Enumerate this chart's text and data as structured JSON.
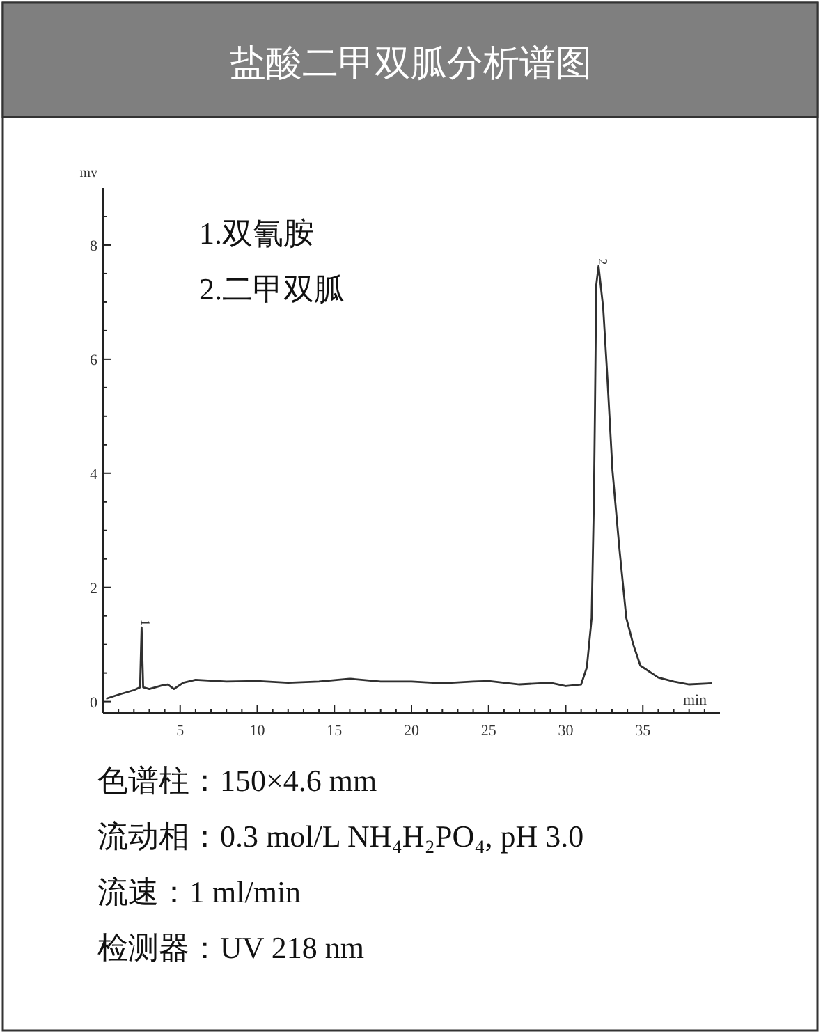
{
  "chart_data": {
    "type": "line",
    "title": "盐酸二甲双胍分析谱图",
    "xlabel": "min",
    "ylabel": "mv",
    "annotations": [
      "1.双氰胺",
      "2.二甲双胍",
      {
        "text": "1",
        "x": 2.5,
        "y": 1.3
      },
      {
        "text": "2",
        "x": 32.13,
        "y": 7.63
      },
      "色谱柱：150×4.6 mm",
      "流动相：0.3 mol/L NH₄H₂PO₄, pH 3.0",
      "流速：1 ml/min",
      "检测器：UV 218 nm"
    ],
    "x": [
      0.2,
      1,
      2,
      2.4,
      2.5,
      2.6,
      3,
      3.8,
      4.2,
      4.6,
      5.2,
      6,
      8,
      10,
      12,
      14,
      16,
      18,
      20,
      22,
      24,
      25,
      27,
      29,
      30,
      31,
      31.37,
      31.68,
      31.83,
      31.9,
      31.98,
      32.13,
      32.43,
      32.7,
      33.03,
      33.48,
      33.93,
      34.4,
      34.84,
      36,
      37,
      38,
      39.5
    ],
    "values": [
      0.05,
      0.12,
      0.2,
      0.25,
      1.3,
      0.25,
      0.22,
      0.28,
      0.3,
      0.22,
      0.33,
      0.38,
      0.35,
      0.36,
      0.33,
      0.35,
      0.4,
      0.35,
      0.35,
      0.32,
      0.35,
      0.36,
      0.3,
      0.33,
      0.27,
      0.3,
      0.6,
      1.46,
      3.57,
      5.2,
      7.3,
      7.63,
      6.9,
      5.68,
      4.05,
      2.68,
      1.46,
      0.98,
      0.63,
      0.42,
      0.35,
      0.3,
      0.32
    ],
    "color": "#303030",
    "line_style": "solid",
    "marker": "none",
    "grid": false,
    "xlim": [
      0,
      40
    ],
    "ylim": [
      -0.2,
      9
    ],
    "xticks": [
      {
        "value": 1,
        "label": null
      },
      {
        "value": 2,
        "label": null
      },
      {
        "value": 3,
        "label": null
      },
      {
        "value": 4,
        "label": null
      },
      5,
      {
        "value": 6,
        "label": null
      },
      {
        "value": 7,
        "label": null
      },
      {
        "value": 8,
        "label": null
      },
      {
        "value": 9,
        "label": null
      },
      10,
      {
        "value": 11,
        "label": null
      },
      {
        "value": 12,
        "label": null
      },
      {
        "value": 13,
        "label": null
      },
      {
        "value": 14,
        "label": null
      },
      15,
      {
        "value": 16,
        "label": null
      },
      {
        "value": 17,
        "label": null
      },
      {
        "value": 18,
        "label": null
      },
      {
        "value": 19,
        "label": null
      },
      20,
      {
        "value": 21,
        "label": null
      },
      {
        "value": 22,
        "label": null
      },
      {
        "value": 23,
        "label": null
      },
      {
        "value": 24,
        "label": null
      },
      25,
      {
        "value": 26,
        "label": null
      },
      {
        "value": 27,
        "label": null
      },
      {
        "value": 28,
        "label": null
      },
      {
        "value": 29,
        "label": null
      },
      30,
      {
        "value": 31,
        "label": null
      },
      {
        "value": 32,
        "label": null
      },
      {
        "value": 33,
        "label": null
      },
      {
        "value": 34,
        "label": null
      },
      35,
      {
        "value": 36,
        "label": null
      },
      {
        "value": 37,
        "label": null
      },
      {
        "value": 38,
        "label": null
      },
      {
        "value": 39,
        "label": null
      }
    ],
    "yticks": [
      0,
      {
        "value": 0.5,
        "label": null
      },
      {
        "value": 1,
        "label": null
      },
      {
        "value": 1.5,
        "label": null
      },
      2,
      {
        "value": 2.5,
        "label": null
      },
      {
        "value": 3,
        "label": null
      },
      {
        "value": 3.5,
        "label": null
      },
      4,
      {
        "value": 4.5,
        "label": null
      },
      {
        "value": 5,
        "label": null
      },
      {
        "value": 5.5,
        "label": null
      },
      6,
      {
        "value": 6.5,
        "label": null
      },
      {
        "value": 7,
        "label": null
      },
      {
        "value": 7.5,
        "label": null
      },
      8,
      {
        "value": 8.5,
        "label": null
      }
    ]
  }
}
